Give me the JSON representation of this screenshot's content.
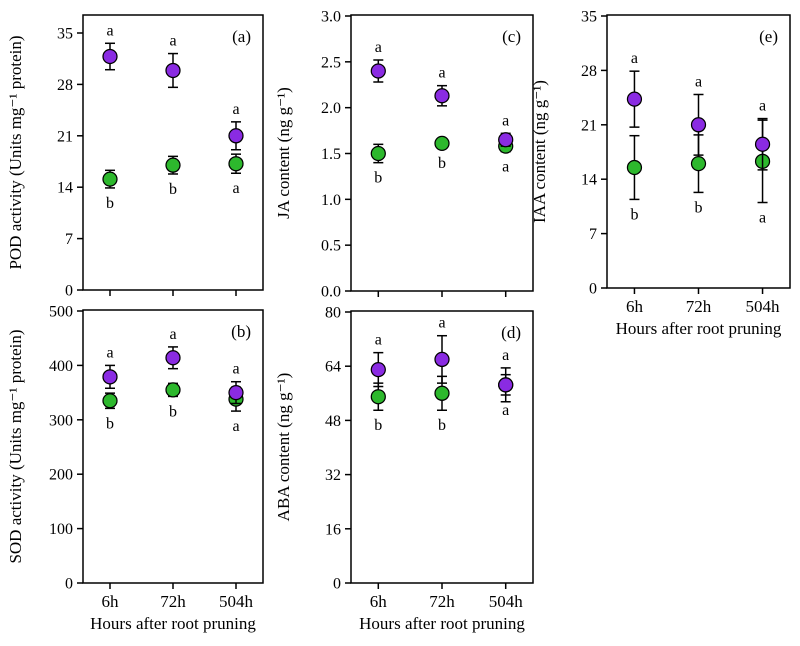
{
  "figure": {
    "background": "#ffffff",
    "x_axis_title": "Hours after root pruning",
    "x_categories": [
      "6h",
      "72h",
      "504h"
    ],
    "series_colors": {
      "purple": "#8a2be2",
      "green": "#2db82d"
    }
  },
  "chart_data": [
    {
      "type": "scatter",
      "panel_label": "(a)",
      "ylabel": "POD activity (Units mg⁻¹ protein)",
      "xlabel": "",
      "show_x_tick_labels": false,
      "x_categories": [
        "6h",
        "72h",
        "504h"
      ],
      "ylim": [
        0,
        35
      ],
      "ytick_values": [
        0,
        7,
        14,
        21,
        28,
        35
      ],
      "ytick_labels": [
        "0",
        "7",
        "14",
        "21",
        "28",
        "35"
      ],
      "series": [
        {
          "name": "purple",
          "color": "#8a2be2",
          "values": [
            31.8,
            29.9,
            21.0
          ],
          "errors": [
            1.8,
            2.3,
            1.9
          ],
          "sig_letters": [
            "a",
            "a",
            "a"
          ],
          "letter_position": "above"
        },
        {
          "name": "green",
          "color": "#2db82d",
          "values": [
            15.1,
            17.0,
            17.2
          ],
          "errors": [
            1.2,
            1.2,
            1.3
          ],
          "sig_letters": [
            "b",
            "b",
            "a"
          ],
          "letter_position": "below"
        }
      ]
    },
    {
      "type": "scatter",
      "panel_label": "(b)",
      "ylabel": "SOD activity (Units mg⁻¹ protein)",
      "xlabel": "Hours after root pruning",
      "show_x_tick_labels": true,
      "x_categories": [
        "6h",
        "72h",
        "504h"
      ],
      "ylim": [
        0,
        500
      ],
      "ytick_values": [
        0,
        100,
        200,
        300,
        400,
        500
      ],
      "ytick_labels": [
        "0",
        "100",
        "200",
        "300",
        "400",
        "500"
      ],
      "series": [
        {
          "name": "purple",
          "color": "#8a2be2",
          "values": [
            379,
            414,
            350
          ],
          "errors": [
            21,
            20,
            20
          ],
          "sig_letters": [
            "a",
            "a",
            "a"
          ],
          "letter_position": "above"
        },
        {
          "name": "green",
          "color": "#2db82d",
          "values": [
            335,
            355,
            338
          ],
          "errors": [
            14,
            12,
            22
          ],
          "sig_letters": [
            "b",
            "b",
            "a"
          ],
          "letter_position": "below"
        }
      ]
    },
    {
      "type": "scatter",
      "panel_label": "(c)",
      "ylabel": "JA content (ng g⁻¹)",
      "xlabel": "",
      "show_x_tick_labels": false,
      "x_categories": [
        "6h",
        "72h",
        "504h"
      ],
      "ylim": [
        0.0,
        3.0
      ],
      "ytick_values": [
        0.0,
        0.5,
        1.0,
        1.5,
        2.0,
        2.5,
        3.0
      ],
      "ytick_labels": [
        "0.0",
        "0.5",
        "1.0",
        "1.5",
        "2.0",
        "2.5",
        "3.0"
      ],
      "series": [
        {
          "name": "purple",
          "color": "#8a2be2",
          "values": [
            2.4,
            2.13,
            1.65
          ],
          "errors": [
            0.12,
            0.11,
            0.07
          ],
          "sig_letters": [
            "a",
            "a",
            "a"
          ],
          "letter_position": "above"
        },
        {
          "name": "green",
          "color": "#2db82d",
          "values": [
            1.5,
            1.61,
            1.58
          ],
          "errors": [
            0.1,
            0.05,
            0.06
          ],
          "sig_letters": [
            "b",
            "b",
            "a"
          ],
          "letter_position": "below"
        }
      ]
    },
    {
      "type": "scatter",
      "panel_label": "(d)",
      "ylabel": "ABA content (ng g⁻¹)",
      "xlabel": "Hours after root pruning",
      "show_x_tick_labels": true,
      "x_categories": [
        "6h",
        "72h",
        "504h"
      ],
      "ylim": [
        0,
        80
      ],
      "ytick_values": [
        0,
        16,
        32,
        48,
        64,
        80
      ],
      "ytick_labels": [
        "0",
        "16",
        "32",
        "48",
        "64",
        "80"
      ],
      "series": [
        {
          "name": "purple",
          "color": "#8a2be2",
          "values": [
            63.0,
            66.0,
            58.5
          ],
          "errors": [
            5.0,
            7.0,
            5.0
          ],
          "sig_letters": [
            "a",
            "a",
            "a"
          ],
          "letter_position": "above"
        },
        {
          "name": "green",
          "color": "#2db82d",
          "values": [
            55.0,
            56.0,
            58.5
          ],
          "errors": [
            4.0,
            5.0,
            3.0
          ],
          "sig_letters": [
            "b",
            "b",
            "a"
          ],
          "letter_position": "below"
        }
      ]
    },
    {
      "type": "scatter",
      "panel_label": "(e)",
      "ylabel": "IAA content (ng g⁻¹)",
      "xlabel": "Hours after root pruning",
      "show_x_tick_labels": true,
      "x_categories": [
        "6h",
        "72h",
        "504h"
      ],
      "ylim": [
        0,
        35
      ],
      "ytick_values": [
        0,
        7,
        14,
        21,
        28,
        35
      ],
      "ytick_labels": [
        "0",
        "7",
        "14",
        "21",
        "28",
        "35"
      ],
      "series": [
        {
          "name": "purple",
          "color": "#8a2be2",
          "values": [
            24.3,
            21.0,
            18.5
          ],
          "errors": [
            3.6,
            3.9,
            3.3
          ],
          "sig_letters": [
            "a",
            "a",
            "a"
          ],
          "letter_position": "above"
        },
        {
          "name": "green",
          "color": "#2db82d",
          "values": [
            15.5,
            16.0,
            16.3
          ],
          "errors": [
            4.1,
            3.7,
            5.3
          ],
          "sig_letters": [
            "b",
            "b",
            "a"
          ],
          "letter_position": "below"
        }
      ]
    }
  ]
}
